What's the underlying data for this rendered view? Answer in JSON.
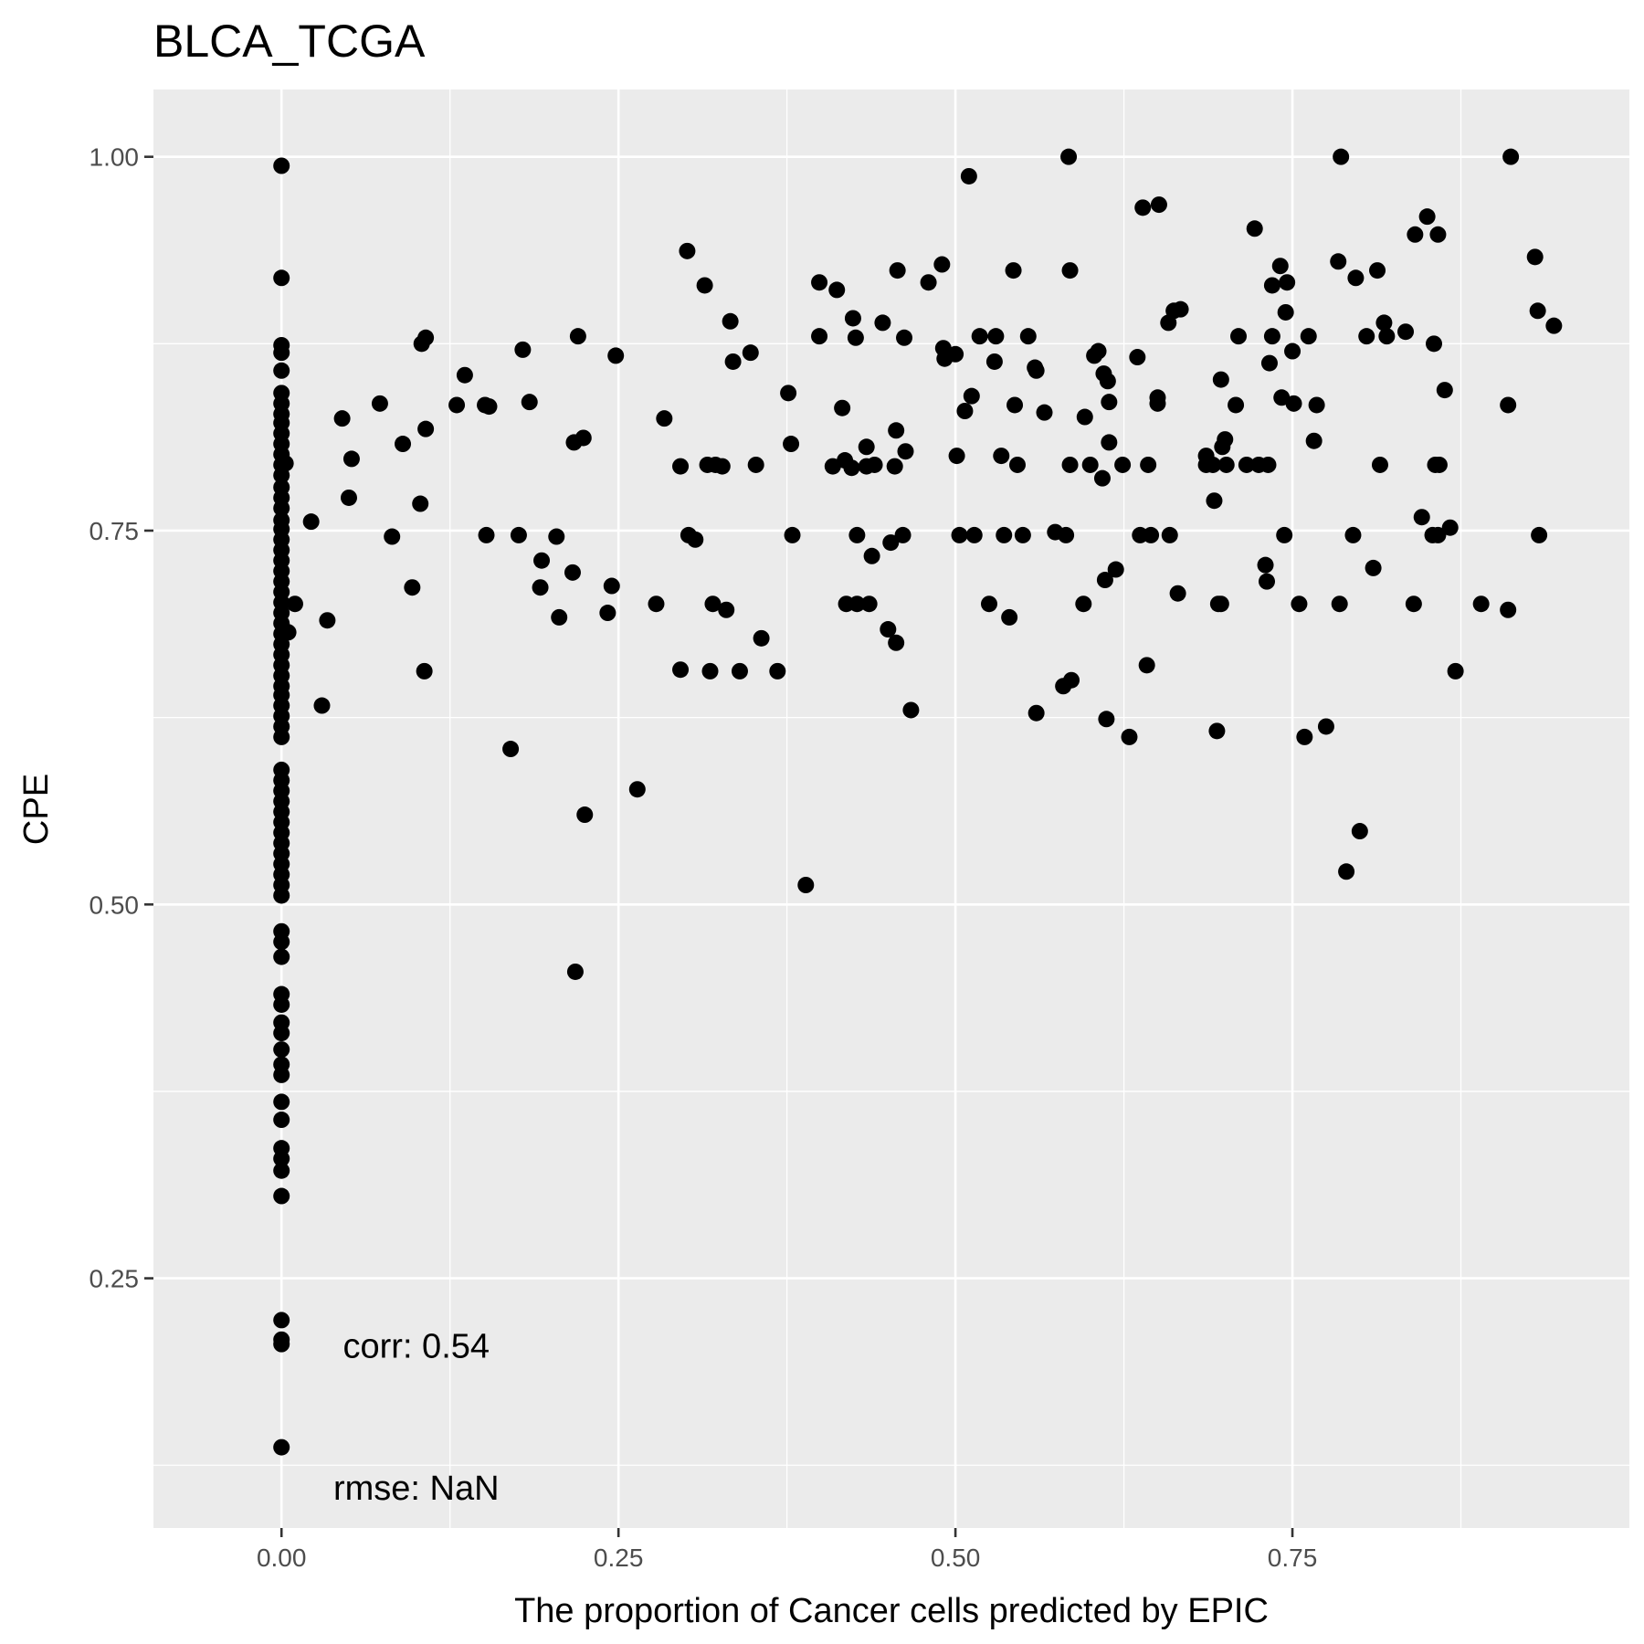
{
  "chart_data": {
    "type": "scatter",
    "title": "BLCA_TCGA",
    "xlabel": "The proportion of Cancer cells predicted by EPIC",
    "ylabel": "CPE",
    "xlim": [
      -0.095,
      1.0
    ],
    "ylim": [
      0.083,
      1.045
    ],
    "x_ticks": [
      0,
      0.25,
      0.5,
      0.75
    ],
    "x_tick_labels": [
      "0.00",
      "0.25",
      "0.50",
      "0.75"
    ],
    "y_ticks": [
      0.25,
      0.5,
      0.75,
      1.0
    ],
    "y_tick_labels": [
      "0.25",
      "0.50",
      "0.75",
      "1.00"
    ],
    "grid": true,
    "legend": "none",
    "point_color": "#000000",
    "panel_color": "#EBEBEB",
    "annotations": [
      {
        "text": "corr: 0.54",
        "x": 0.1,
        "y": 0.205
      },
      {
        "text": "rmse: NaN",
        "x": 0.1,
        "y": 0.11
      }
    ],
    "points": [
      [
        0,
        0.994
      ],
      [
        0,
        0.919
      ],
      [
        0,
        0.874
      ],
      [
        0,
        0.869
      ],
      [
        0,
        0.857
      ],
      [
        0,
        0.842
      ],
      [
        0,
        0.835
      ],
      [
        0,
        0.828
      ],
      [
        0,
        0.822
      ],
      [
        0,
        0.815
      ],
      [
        0,
        0.808
      ],
      [
        0,
        0.801
      ],
      [
        0,
        0.794
      ],
      [
        0,
        0.787
      ],
      [
        0,
        0.779
      ],
      [
        0,
        0.772
      ],
      [
        0,
        0.765
      ],
      [
        0,
        0.757
      ],
      [
        0,
        0.751
      ],
      [
        0,
        0.744
      ],
      [
        0,
        0.737
      ],
      [
        0,
        0.73
      ],
      [
        0,
        0.723
      ],
      [
        0,
        0.716
      ],
      [
        0,
        0.709
      ],
      [
        0,
        0.702
      ],
      [
        0,
        0.695
      ],
      [
        0,
        0.688
      ],
      [
        0,
        0.681
      ],
      [
        0,
        0.674
      ],
      [
        0,
        0.667
      ],
      [
        0,
        0.66
      ],
      [
        0,
        0.653
      ],
      [
        0,
        0.646
      ],
      [
        0,
        0.64
      ],
      [
        0,
        0.633
      ],
      [
        0,
        0.626
      ],
      [
        0,
        0.619
      ],
      [
        0,
        0.612
      ],
      [
        0,
        0.59
      ],
      [
        0,
        0.583
      ],
      [
        0,
        0.576
      ],
      [
        0,
        0.569
      ],
      [
        0,
        0.562
      ],
      [
        0,
        0.555
      ],
      [
        0,
        0.548
      ],
      [
        0,
        0.541
      ],
      [
        0,
        0.534
      ],
      [
        0,
        0.527
      ],
      [
        0,
        0.52
      ],
      [
        0,
        0.513
      ],
      [
        0,
        0.506
      ],
      [
        0,
        0.482
      ],
      [
        0,
        0.475
      ],
      [
        0,
        0.465
      ],
      [
        0,
        0.44
      ],
      [
        0,
        0.433
      ],
      [
        0,
        0.421
      ],
      [
        0,
        0.414
      ],
      [
        0,
        0.403
      ],
      [
        0,
        0.393
      ],
      [
        0,
        0.386
      ],
      [
        0,
        0.368
      ],
      [
        0,
        0.356
      ],
      [
        0,
        0.337
      ],
      [
        0,
        0.33
      ],
      [
        0,
        0.322
      ],
      [
        0,
        0.305
      ],
      [
        0,
        0.222
      ],
      [
        0,
        0.209
      ],
      [
        0,
        0.206
      ],
      [
        0,
        0.137
      ],
      [
        0.003,
        0.795
      ],
      [
        0.005,
        0.682
      ],
      [
        0.01,
        0.701
      ],
      [
        0.022,
        0.756
      ],
      [
        0.03,
        0.633
      ],
      [
        0.034,
        0.69
      ],
      [
        0.045,
        0.825
      ],
      [
        0.05,
        0.772
      ],
      [
        0.052,
        0.798
      ],
      [
        0.073,
        0.835
      ],
      [
        0.082,
        0.746
      ],
      [
        0.09,
        0.808
      ],
      [
        0.097,
        0.712
      ],
      [
        0.103,
        0.768
      ],
      [
        0.104,
        0.875
      ],
      [
        0.107,
        0.879
      ],
      [
        0.107,
        0.818
      ],
      [
        0.106,
        0.656
      ],
      [
        0.13,
        0.834
      ],
      [
        0.136,
        0.854
      ],
      [
        0.151,
        0.834
      ],
      [
        0.152,
        0.747
      ],
      [
        0.154,
        0.833
      ],
      [
        0.17,
        0.604
      ],
      [
        0.176,
        0.747
      ],
      [
        0.179,
        0.871
      ],
      [
        0.184,
        0.836
      ],
      [
        0.192,
        0.712
      ],
      [
        0.193,
        0.73
      ],
      [
        0.204,
        0.746
      ],
      [
        0.206,
        0.692
      ],
      [
        0.216,
        0.722
      ],
      [
        0.217,
        0.809
      ],
      [
        0.218,
        0.455
      ],
      [
        0.22,
        0.88
      ],
      [
        0.224,
        0.812
      ],
      [
        0.225,
        0.56
      ],
      [
        0.242,
        0.695
      ],
      [
        0.245,
        0.713
      ],
      [
        0.248,
        0.867
      ],
      [
        0.264,
        0.577
      ],
      [
        0.278,
        0.701
      ],
      [
        0.284,
        0.825
      ],
      [
        0.296,
        0.793
      ],
      [
        0.296,
        0.657
      ],
      [
        0.301,
        0.937
      ],
      [
        0.302,
        0.747
      ],
      [
        0.307,
        0.744
      ],
      [
        0.314,
        0.914
      ],
      [
        0.316,
        0.794
      ],
      [
        0.318,
        0.656
      ],
      [
        0.32,
        0.701
      ],
      [
        0.322,
        0.794
      ],
      [
        0.327,
        0.793
      ],
      [
        0.33,
        0.697
      ],
      [
        0.333,
        0.89
      ],
      [
        0.335,
        0.863
      ],
      [
        0.34,
        0.656
      ],
      [
        0.348,
        0.869
      ],
      [
        0.352,
        0.794
      ],
      [
        0.356,
        0.678
      ],
      [
        0.368,
        0.656
      ],
      [
        0.376,
        0.842
      ],
      [
        0.378,
        0.808
      ],
      [
        0.379,
        0.747
      ],
      [
        0.389,
        0.513
      ],
      [
        0.399,
        0.916
      ],
      [
        0.399,
        0.88
      ],
      [
        0.409,
        0.793
      ],
      [
        0.412,
        0.911
      ],
      [
        0.416,
        0.832
      ],
      [
        0.418,
        0.797
      ],
      [
        0.419,
        0.701
      ],
      [
        0.423,
        0.792
      ],
      [
        0.424,
        0.892
      ],
      [
        0.426,
        0.879
      ],
      [
        0.427,
        0.747
      ],
      [
        0.427,
        0.701
      ],
      [
        0.434,
        0.806
      ],
      [
        0.434,
        0.793
      ],
      [
        0.436,
        0.701
      ],
      [
        0.438,
        0.733
      ],
      [
        0.44,
        0.794
      ],
      [
        0.446,
        0.889
      ],
      [
        0.45,
        0.684
      ],
      [
        0.452,
        0.742
      ],
      [
        0.455,
        0.793
      ],
      [
        0.456,
        0.817
      ],
      [
        0.456,
        0.675
      ],
      [
        0.457,
        0.924
      ],
      [
        0.461,
        0.747
      ],
      [
        0.462,
        0.879
      ],
      [
        0.463,
        0.803
      ],
      [
        0.467,
        0.63
      ],
      [
        0.48,
        0.916
      ],
      [
        0.49,
        0.928
      ],
      [
        0.491,
        0.872
      ],
      [
        0.492,
        0.865
      ],
      [
        0.5,
        0.868
      ],
      [
        0.501,
        0.8
      ],
      [
        0.503,
        0.747
      ],
      [
        0.507,
        0.83
      ],
      [
        0.51,
        0.987
      ],
      [
        0.512,
        0.84
      ],
      [
        0.514,
        0.747
      ],
      [
        0.518,
        0.88
      ],
      [
        0.525,
        0.701
      ],
      [
        0.529,
        0.863
      ],
      [
        0.53,
        0.88
      ],
      [
        0.534,
        0.8
      ],
      [
        0.536,
        0.747
      ],
      [
        0.54,
        0.692
      ],
      [
        0.543,
        0.924
      ],
      [
        0.544,
        0.834
      ],
      [
        0.546,
        0.794
      ],
      [
        0.55,
        0.747
      ],
      [
        0.554,
        0.88
      ],
      [
        0.559,
        0.859
      ],
      [
        0.56,
        0.857
      ],
      [
        0.56,
        0.628
      ],
      [
        0.566,
        0.829
      ],
      [
        0.574,
        0.749
      ],
      [
        0.58,
        0.646
      ],
      [
        0.582,
        0.747
      ],
      [
        0.584,
        1.0
      ],
      [
        0.585,
        0.924
      ],
      [
        0.585,
        0.794
      ],
      [
        0.586,
        0.65
      ],
      [
        0.595,
        0.701
      ],
      [
        0.596,
        0.826
      ],
      [
        0.6,
        0.794
      ],
      [
        0.603,
        0.867
      ],
      [
        0.606,
        0.87
      ],
      [
        0.609,
        0.785
      ],
      [
        0.61,
        0.855
      ],
      [
        0.611,
        0.717
      ],
      [
        0.612,
        0.624
      ],
      [
        0.613,
        0.85
      ],
      [
        0.614,
        0.809
      ],
      [
        0.614,
        0.836
      ],
      [
        0.619,
        0.724
      ],
      [
        0.624,
        0.794
      ],
      [
        0.629,
        0.612
      ],
      [
        0.635,
        0.866
      ],
      [
        0.637,
        0.747
      ],
      [
        0.639,
        0.966
      ],
      [
        0.642,
        0.66
      ],
      [
        0.643,
        0.794
      ],
      [
        0.645,
        0.747
      ],
      [
        0.65,
        0.839
      ],
      [
        0.65,
        0.835
      ],
      [
        0.651,
        0.968
      ],
      [
        0.658,
        0.889
      ],
      [
        0.659,
        0.747
      ],
      [
        0.662,
        0.897
      ],
      [
        0.665,
        0.708
      ],
      [
        0.667,
        0.898
      ],
      [
        0.686,
        0.8
      ],
      [
        0.686,
        0.794
      ],
      [
        0.691,
        0.794
      ],
      [
        0.692,
        0.77
      ],
      [
        0.694,
        0.616
      ],
      [
        0.695,
        0.701
      ],
      [
        0.697,
        0.851
      ],
      [
        0.697,
        0.701
      ],
      [
        0.698,
        0.806
      ],
      [
        0.7,
        0.811
      ],
      [
        0.701,
        0.794
      ],
      [
        0.708,
        0.834
      ],
      [
        0.71,
        0.88
      ],
      [
        0.716,
        0.794
      ],
      [
        0.722,
        0.952
      ],
      [
        0.725,
        0.794
      ],
      [
        0.73,
        0.727
      ],
      [
        0.731,
        0.716
      ],
      [
        0.732,
        0.794
      ],
      [
        0.733,
        0.862
      ],
      [
        0.735,
        0.88
      ],
      [
        0.735,
        0.914
      ],
      [
        0.741,
        0.927
      ],
      [
        0.742,
        0.839
      ],
      [
        0.744,
        0.747
      ],
      [
        0.745,
        0.896
      ],
      [
        0.746,
        0.916
      ],
      [
        0.75,
        0.87
      ],
      [
        0.751,
        0.835
      ],
      [
        0.755,
        0.701
      ],
      [
        0.759,
        0.612
      ],
      [
        0.762,
        0.88
      ],
      [
        0.766,
        0.81
      ],
      [
        0.768,
        0.834
      ],
      [
        0.775,
        0.619
      ],
      [
        0.784,
        0.93
      ],
      [
        0.785,
        0.701
      ],
      [
        0.786,
        1.0
      ],
      [
        0.79,
        0.522
      ],
      [
        0.795,
        0.747
      ],
      [
        0.797,
        0.919
      ],
      [
        0.8,
        0.549
      ],
      [
        0.805,
        0.88
      ],
      [
        0.81,
        0.725
      ],
      [
        0.813,
        0.924
      ],
      [
        0.815,
        0.794
      ],
      [
        0.818,
        0.889
      ],
      [
        0.82,
        0.88
      ],
      [
        0.834,
        0.883
      ],
      [
        0.84,
        0.701
      ],
      [
        0.841,
        0.948
      ],
      [
        0.846,
        0.759
      ],
      [
        0.85,
        0.96
      ],
      [
        0.854,
        0.747
      ],
      [
        0.855,
        0.875
      ],
      [
        0.856,
        0.794
      ],
      [
        0.858,
        0.747
      ],
      [
        0.858,
        0.948
      ],
      [
        0.859,
        0.794
      ],
      [
        0.863,
        0.844
      ],
      [
        0.867,
        0.752
      ],
      [
        0.871,
        0.656
      ],
      [
        0.89,
        0.701
      ],
      [
        0.91,
        0.697
      ],
      [
        0.91,
        0.834
      ],
      [
        0.912,
        1.0
      ],
      [
        0.93,
        0.933
      ],
      [
        0.932,
        0.897
      ],
      [
        0.933,
        0.747
      ],
      [
        0.944,
        0.887
      ]
    ]
  }
}
